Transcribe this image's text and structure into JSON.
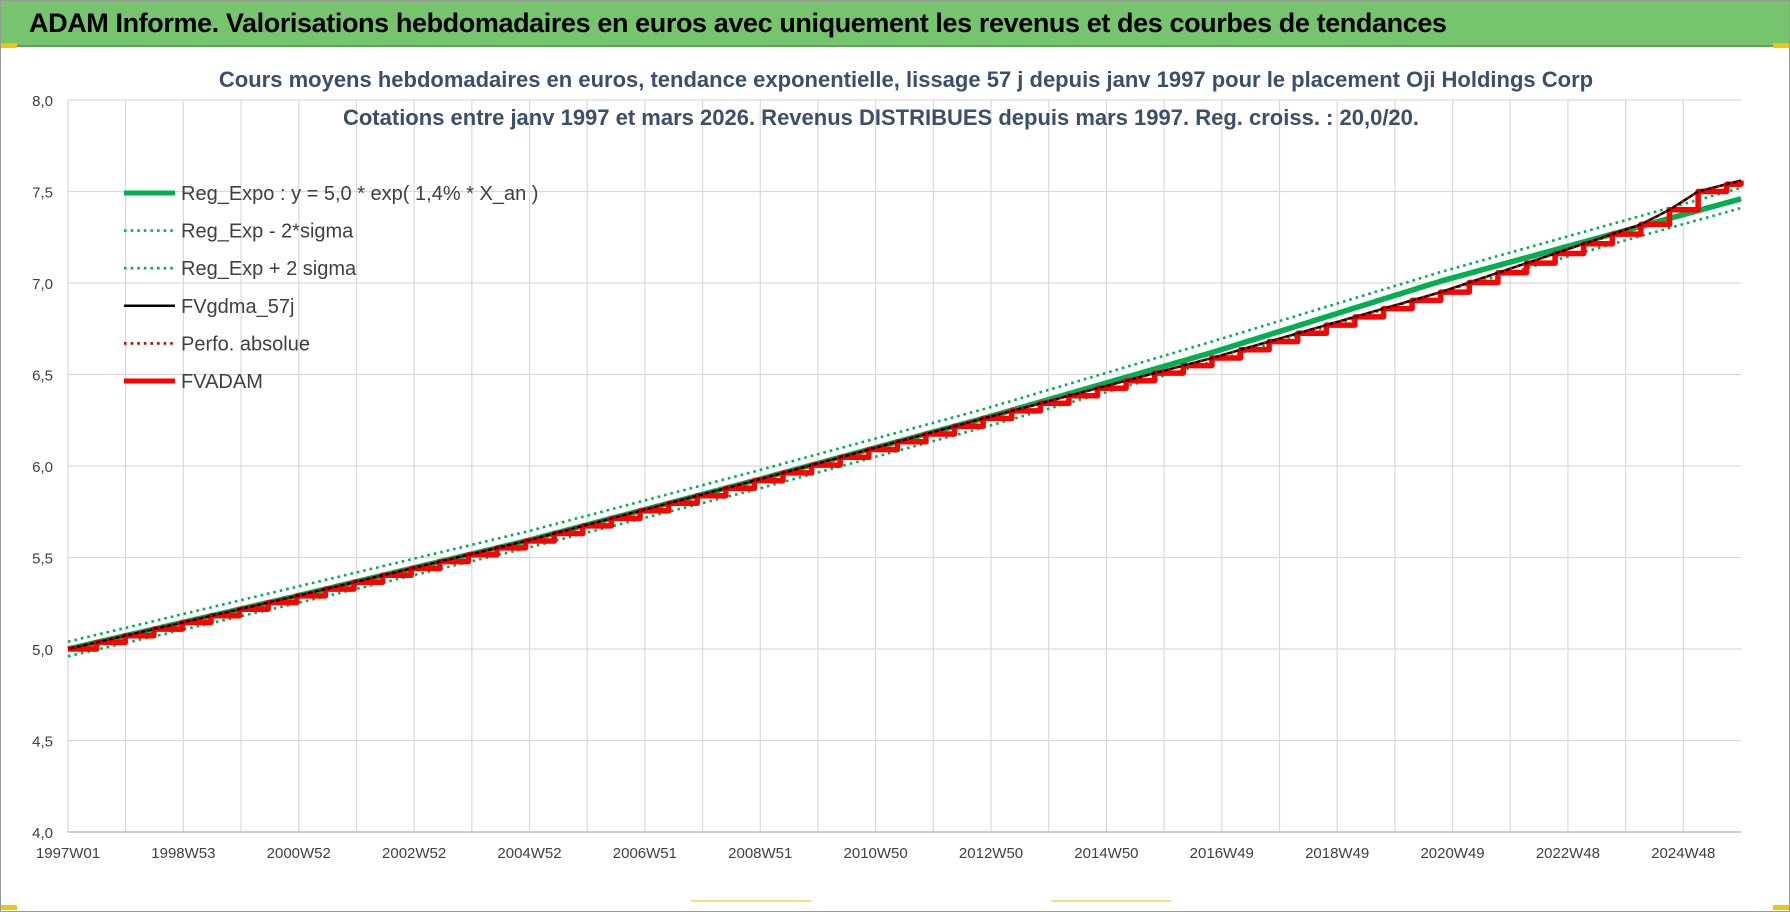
{
  "banner": {
    "title": "ADAM Informe. Valorisations hebdomadaires en euros avec uniquement les revenus et des courbes de tendances",
    "color": "#77c46e"
  },
  "chart_data": {
    "type": "line",
    "title": "Cours moyens hebdomadaires en euros, tendance exponentielle, lissage 57 j depuis janv 1997 pour le placement Oji Holdings Corp",
    "subtitle": "Cotations entre janv 1997 et mars 2026. Revenus DISTRIBUES depuis mars 1997. Reg. croiss. : 20,0/20.",
    "xlabel": "",
    "ylabel": "",
    "ylim": [
      4.0,
      8.0
    ],
    "y_ticks": [
      "4,0",
      "4,5",
      "5,0",
      "5,5",
      "6,0",
      "6,5",
      "7,0",
      "7,5",
      "8,0"
    ],
    "x_ticks": [
      "1997W01",
      "1998W53",
      "2000W52",
      "2002W52",
      "2004W52",
      "2006W51",
      "2008W51",
      "2010W50",
      "2012W50",
      "2014W50",
      "2016W49",
      "2018W49",
      "2020W49",
      "2022W48",
      "2024W48"
    ],
    "x_range_years": [
      1997.0,
      2026.25
    ],
    "grid": true,
    "legend_position": "top-left",
    "series": [
      {
        "name": "Reg_Expo : y = 5,0 * exp( 1,4% *  X_an )",
        "style": "solid-thick",
        "color": "#00b050",
        "x": [
          1997,
          2001,
          2005,
          2009,
          2013,
          2017,
          2021,
          2026.25
        ],
        "y": [
          5.0,
          5.29,
          5.59,
          5.92,
          6.26,
          6.62,
          7.01,
          7.46
        ]
      },
      {
        "name": "Reg_Exp - 2*sigma",
        "style": "dotted",
        "color": "#00b050",
        "x": [
          1997,
          2001,
          2005,
          2009,
          2013,
          2017,
          2021,
          2026.25
        ],
        "y": [
          4.96,
          5.25,
          5.55,
          5.87,
          6.21,
          6.57,
          6.95,
          7.41
        ]
      },
      {
        "name": "Reg_Exp + 2 sigma",
        "style": "dotted",
        "color": "#00b050",
        "x": [
          1997,
          2001,
          2005,
          2009,
          2013,
          2017,
          2021,
          2026.25
        ],
        "y": [
          5.04,
          5.34,
          5.64,
          5.97,
          6.31,
          6.68,
          7.06,
          7.52
        ]
      },
      {
        "name": "FVgdma_57j",
        "style": "solid",
        "color": "#000000",
        "x": [
          1997,
          2001,
          2005,
          2009,
          2013,
          2017,
          2021,
          2024.5,
          2025,
          2025.5,
          2026.25
        ],
        "y": [
          5.0,
          5.29,
          5.59,
          5.92,
          6.26,
          6.59,
          6.95,
          7.32,
          7.4,
          7.5,
          7.56
        ]
      },
      {
        "name": "Perfo. absolue",
        "style": "dotted",
        "color": "#c00000",
        "x": [
          1997,
          2001,
          2005,
          2009,
          2013,
          2017,
          2021,
          2024.5,
          2025,
          2025.5,
          2026.25
        ],
        "y": [
          5.0,
          5.29,
          5.59,
          5.92,
          6.26,
          6.59,
          6.95,
          7.32,
          7.4,
          7.5,
          7.56
        ]
      },
      {
        "name": "FVADAM",
        "style": "stepped-thick",
        "color": "#ff0000",
        "step_years": 0.5,
        "x": [
          1997,
          2001,
          2005,
          2009,
          2013,
          2017,
          2021,
          2024.5,
          2025,
          2025.5,
          2026.25
        ],
        "y": [
          5.0,
          5.29,
          5.59,
          5.92,
          6.26,
          6.59,
          6.95,
          7.32,
          7.4,
          7.5,
          7.56
        ]
      }
    ]
  }
}
